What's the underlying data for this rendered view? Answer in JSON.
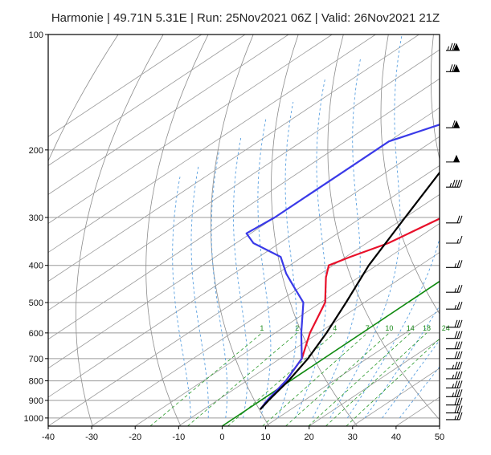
{
  "chart_data": {
    "type": "line",
    "subtype": "skew-T log-P sounding",
    "title": "Harmonie | 49.71N 5.31E | Run: 25Nov2021 06Z | Valid: 26Nov2021 21Z",
    "x_axis": {
      "label": "",
      "unit": "°C",
      "range": [
        -40,
        50
      ],
      "ticks": [
        -40,
        -30,
        -20,
        -10,
        0,
        10,
        20,
        30,
        40,
        50
      ]
    },
    "y_axis": {
      "label": "",
      "unit": "hPa",
      "scale": "log",
      "range": [
        1050,
        100
      ],
      "ticks": [
        100,
        200,
        300,
        400,
        500,
        600,
        700,
        800,
        900,
        1000
      ]
    },
    "mixing_ratio_labels": [
      "1",
      "2",
      "4",
      "7",
      "10",
      "14",
      "18",
      "24"
    ],
    "mixing_ratio_values": [
      1,
      2,
      4,
      7,
      10,
      14,
      18,
      24
    ],
    "colors": {
      "temperature": "#e8102a",
      "dewpoint": "#3a3ae8",
      "parcel": "#000000",
      "isotherm_zero": "#0f8a0f",
      "mixing_ratio": "#2a9a2a",
      "moist_adiabat": "#5aa0e0",
      "dry_adiabat": "#8c8c8c",
      "grid": "#9a9a9a"
    },
    "series": [
      {
        "points": [
          [
            100,
            12
          ],
          [
            120,
            7
          ],
          [
            140,
            5
          ],
          [
            160,
            -1
          ],
          [
            200,
            -11
          ],
          [
            230,
            -18
          ],
          [
            300,
            -21.5
          ],
          [
            350,
            -25
          ],
          [
            380,
            -29
          ],
          [
            400,
            -31
          ],
          [
            430,
            -27.5
          ],
          [
            500,
            -19
          ],
          [
            600,
            -12
          ],
          [
            700,
            -5
          ],
          [
            800,
            -1
          ],
          [
            900,
            1.5
          ],
          [
            950,
            3
          ]
        ]
      },
      {
        "points": [
          [
            100,
            -29
          ],
          [
            130,
            -43
          ],
          [
            160,
            -50
          ],
          [
            190,
            -60
          ],
          [
            230,
            -60
          ],
          [
            300,
            -60
          ],
          [
            330,
            -61
          ],
          [
            350,
            -56
          ],
          [
            380,
            -45
          ],
          [
            420,
            -38
          ],
          [
            450,
            -32.5
          ],
          [
            500,
            -24
          ],
          [
            600,
            -14
          ],
          [
            700,
            -5
          ],
          [
            800,
            -1
          ],
          [
            900,
            1.5
          ],
          [
            950,
            3
          ]
        ]
      },
      {
        "points": [
          [
            210,
            -40
          ],
          [
            300,
            -30
          ],
          [
            400,
            -21.8
          ],
          [
            500,
            -14.2
          ],
          [
            600,
            -8.2
          ],
          [
            700,
            -3.6
          ],
          [
            800,
            -0.4
          ],
          [
            900,
            1.8
          ],
          [
            950,
            3
          ]
        ]
      }
    ],
    "wind_barbs": [
      {
        "p": 110,
        "knots": 75
      },
      {
        "p": 125,
        "knots": 70
      },
      {
        "p": 175,
        "knots": 60
      },
      {
        "p": 215,
        "knots": 50
      },
      {
        "p": 250,
        "knots": 45
      },
      {
        "p": 310,
        "knots": 20
      },
      {
        "p": 350,
        "knots": 15
      },
      {
        "p": 405,
        "knots": 25
      },
      {
        "p": 470,
        "knots": 25
      },
      {
        "p": 520,
        "knots": 25
      },
      {
        "p": 580,
        "knots": 30
      },
      {
        "p": 620,
        "knots": 30
      },
      {
        "p": 660,
        "knots": 30
      },
      {
        "p": 700,
        "knots": 30
      },
      {
        "p": 745,
        "knots": 35
      },
      {
        "p": 790,
        "knots": 35
      },
      {
        "p": 835,
        "knots": 35
      },
      {
        "p": 880,
        "knots": 35
      },
      {
        "p": 925,
        "knots": 30
      },
      {
        "p": 970,
        "knots": 30
      },
      {
        "p": 1010,
        "knots": 25
      }
    ]
  }
}
